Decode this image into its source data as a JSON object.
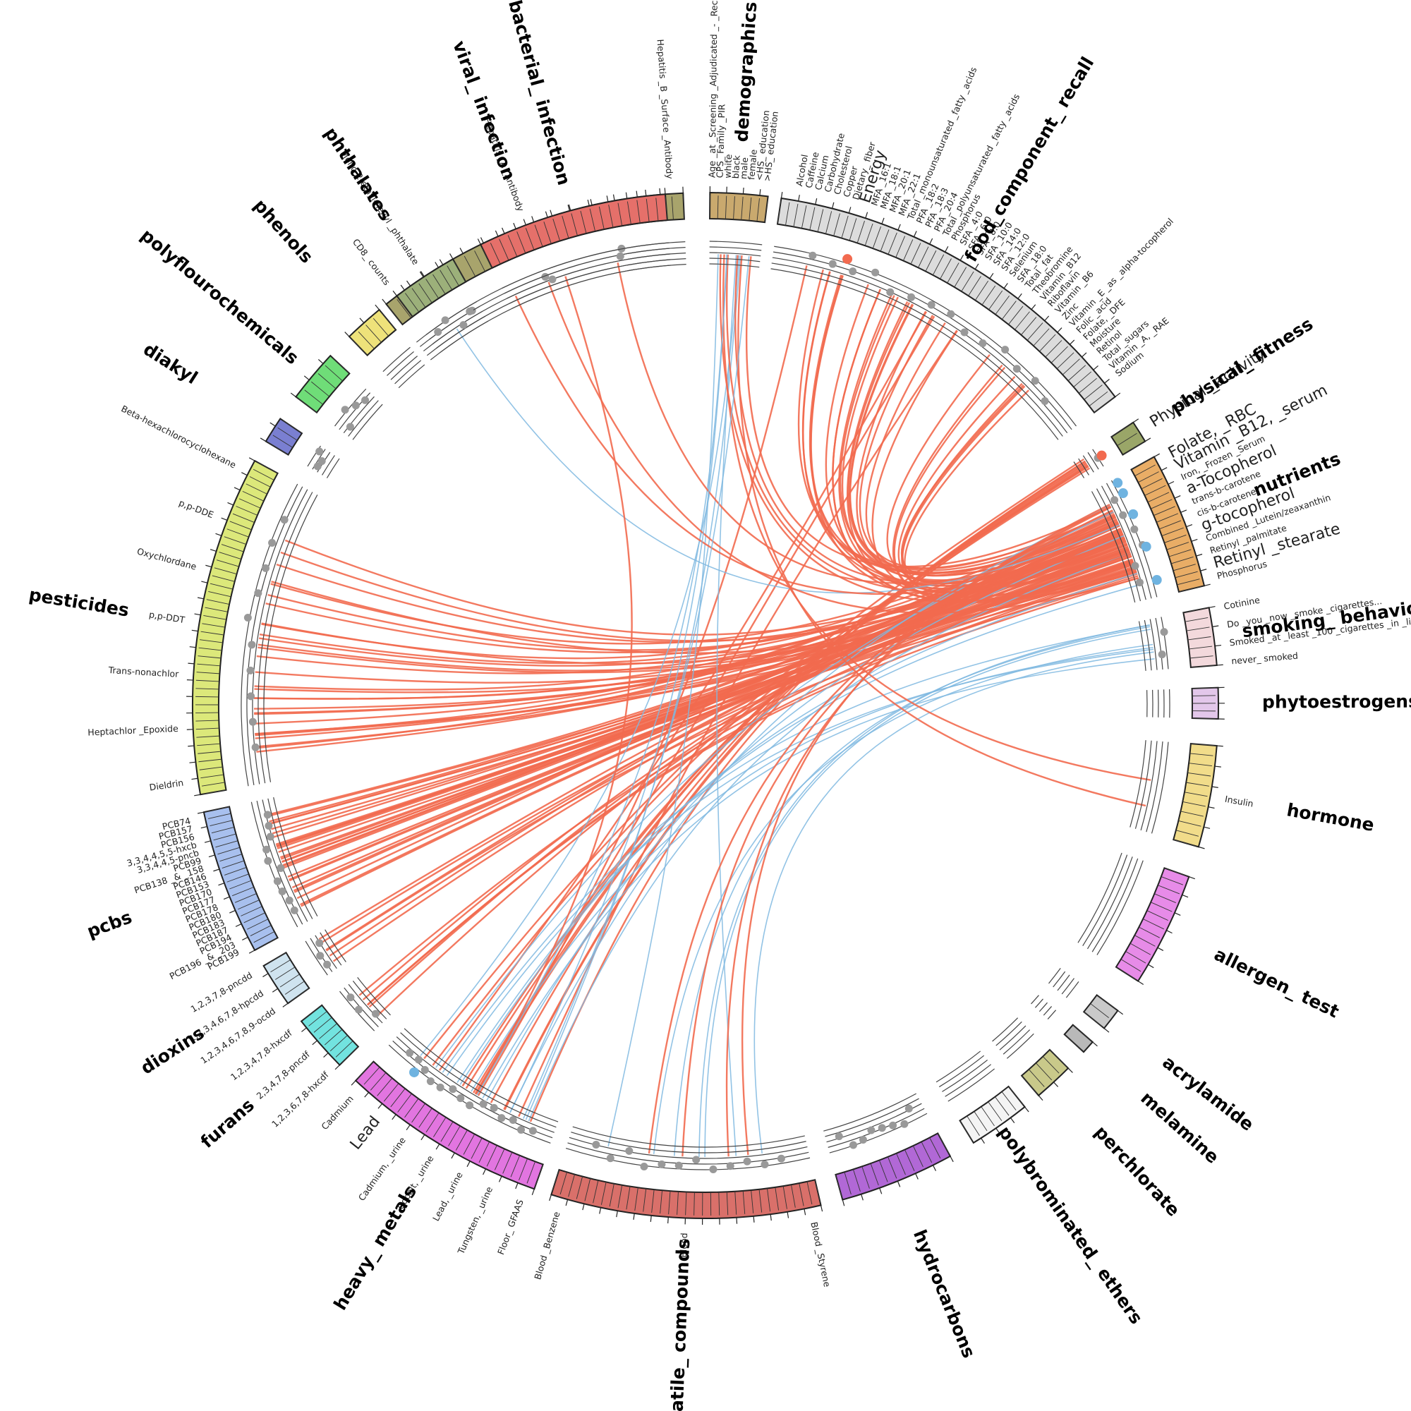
{
  "categories": [
    {
      "name": "viral_ infection",
      "color": "#a8a46c",
      "start": -38.5,
      "end": -2.5,
      "ticks": 28,
      "labels": [
        "CD8_ counts",
        "Hepatitis _A _Antibody",
        "Hepatitis _B _Surface _Antibody"
      ],
      "dots": 3
    },
    {
      "name": "demographics",
      "color": "#c9a96e",
      "start": 0.5,
      "end": 7.0,
      "ticks": 7,
      "labels": [
        "Age _at _Screening _Adjudicated _- _Recode",
        "CPS_ Family _PIR",
        "white",
        "black",
        "male",
        "female",
        "<HS_ education",
        ">HS_ education"
      ],
      "dots": 0
    },
    {
      "name": "food_component_ recall",
      "color": "#dcdcdc",
      "start": 8.5,
      "end": 53.0,
      "ticks": 46,
      "labels": [
        "Alcohol",
        "Caffeine",
        "Calcium",
        "Carbohydrate",
        "Cholesterol",
        "Copper",
        "Dietary_ fiber",
        "Energy",
        "MFA _16:1",
        "MFA _18:1",
        "MFA _20:1",
        "MFA _22:1",
        "Total _monounsaturated _fatty _acids",
        "PFA _18:2",
        "PFA _18:3",
        "PFA _20:4",
        "Total _polyunsaturated _fatty _acids",
        "Phosphorus",
        "SFA _4:0",
        "SFA _6:0",
        "SFA _8:0",
        "SFA _10:0",
        "SFA _14:0",
        "SFA _12:0",
        "Selenium",
        "SFA _18:0",
        "Total _fat",
        "Theobromine",
        "Vitamin _B12",
        "Riboflavin",
        "Vitamin _B6",
        "Zinc",
        "Vitamin _E _as _alpha-tocopherol",
        "Folic _acid",
        "Folate, _DFE",
        "Moisture",
        "Retinol",
        "Total _sugars",
        "Vitamin _A, _RAE",
        "Sodium"
      ],
      "dots": 14
    },
    {
      "name": "physical_ fitness",
      "color": "#9aa668",
      "start": 56.5,
      "end": 59.0,
      "ticks": 2,
      "labels": [
        "Physical _activity"
      ],
      "dots": 1
    },
    {
      "name": "nutrients",
      "color": "#e9ad66",
      "start": 61.0,
      "end": 76.5,
      "ticks": 18,
      "labels": [
        "Folate, _RBC",
        "Vitamin _B12, _serum",
        "Iron, _Frozen _Serum",
        "a-Tocopherol",
        "trans-b-carotene",
        "cis-b-carotene",
        "g-tocopherol",
        "Combined _Lutein/zeaxanthin",
        "Retinyl _palmitate",
        "Retinyl _stearate",
        "Phosphorus"
      ],
      "dots": 6
    },
    {
      "name": "smoking_ behavior",
      "color": "#f3d9dc",
      "start": 79.0,
      "end": 85.5,
      "ticks": 6,
      "labels": [
        "Cotinine",
        "Do _you _now _smoke _cigarettes...",
        "Smoked _at _least _100 _cigarettes _in _life",
        "never_ smoked"
      ],
      "dots": 2
    },
    {
      "name": "phytoestrogens",
      "color": "#e3c7ea",
      "start": 88.0,
      "end": 91.5,
      "ticks": 4,
      "labels": [],
      "dots": 0
    },
    {
      "name": "hormone",
      "color": "#f1dc8a",
      "start": 94.5,
      "end": 106.0,
      "ticks": 10,
      "labels": [
        "Insulin"
      ],
      "dots": 0
    },
    {
      "name": "allergen_ test",
      "color": "#e78be8",
      "start": 109.5,
      "end": 122.5,
      "ticks": 12,
      "labels": [],
      "dots": 0
    },
    {
      "name": "acrylamide",
      "color": "#c9c9c9",
      "start": 126.5,
      "end": 129.0,
      "ticks": 2,
      "labels": [],
      "dots": 0
    },
    {
      "name": "melamine",
      "color": "#b9b9b9",
      "start": 131.0,
      "end": 132.5,
      "ticks": 1,
      "labels": [],
      "dots": 0
    },
    {
      "name": "perchlorate",
      "color": "#c9c98a",
      "start": 135.0,
      "end": 139.5,
      "ticks": 4,
      "labels": [],
      "dots": 0
    },
    {
      "name": "polybrominated_ ethers",
      "color": "#f4f4f4",
      "start": 141.5,
      "end": 148.5,
      "ticks": 7,
      "labels": [],
      "dots": 0
    },
    {
      "name": "hydrocarbons",
      "color": "#b168d6",
      "start": 151.5,
      "end": 164.5,
      "ticks": 12,
      "labels": [],
      "dots": 8
    },
    {
      "name": "volatile_ compounds",
      "color": "#d9706a",
      "start": 167.0,
      "end": 197.5,
      "ticks": 32,
      "labels": [
        "Blood _Styrene",
        "Blood",
        "Blood _Benzene"
      ],
      "dots": 12
    },
    {
      "name": "heavy_ metals",
      "color": "#e275e0",
      "start": 199.5,
      "end": 223.0,
      "ticks": 24,
      "labels": [
        "Floor_ GFAAS",
        "Tungsten, _urine",
        "Lead, _urine",
        "Cobalt, _urine",
        "Cadmium, _urine",
        "Lead",
        "Cadmium"
      ],
      "dots": 14
    },
    {
      "name": "furans",
      "color": "#72e3df",
      "start": 225.5,
      "end": 232.0,
      "ticks": 7,
      "labels": [
        "1,2,3,6,7,8-hxcdf",
        "2,3,4,7,8-pncdf",
        "1,2,3,4,7,8-hxcdf"
      ],
      "dots": 3
    },
    {
      "name": "dioxins",
      "color": "#cfe3ef",
      "start": 234.5,
      "end": 239.5,
      "ticks": 5,
      "labels": [
        "1,2,3,4,6,7,8,9-ocdd",
        "1,2,3,4,6,7,8-hpcdd",
        "1,2,3,7,8-pncdd"
      ],
      "dots": 3
    },
    {
      "name": "pcbs",
      "color": "#a8c0ee",
      "start": 241.5,
      "end": 258.0,
      "ticks": 20,
      "labels": [
        "PCB199",
        "PCB196 _& _203",
        "PCB194",
        "PCB187",
        "PCB183",
        "PCB180",
        "PCB178",
        "PCB177",
        "PCB170",
        "PCB153",
        "PCB146",
        "PCB138 _& _158",
        "PCB99",
        "3,3,4,4,5-pncb",
        "3,3,4,4,5,5-hxcb",
        "PCB156",
        "PCB157",
        "PCB74"
      ],
      "dots": 10
    },
    {
      "name": "pesticides",
      "color": "#dce87a",
      "start": 260.0,
      "end": 298.5,
      "ticks": 42,
      "labels": [
        "Dieldrin",
        "Heptachlor _Epoxide",
        "Trans-nonachlor",
        "p,p-DDT",
        "Oxychlordane",
        "p,p-DDE",
        "Beta-hexachlorocyclohexane"
      ],
      "dots": 10
    },
    {
      "name": "diakyl",
      "color": "#7a7fd1",
      "start": 301.0,
      "end": 304.0,
      "ticks": 3,
      "labels": [],
      "dots": 3
    },
    {
      "name": "polyflourochemicals",
      "color": "#6fdd78",
      "start": 307.0,
      "end": 313.0,
      "ticks": 5,
      "labels": [],
      "dots": 4
    },
    {
      "name": "phenols",
      "color": "#eee27a",
      "start": 316.0,
      "end": 320.5,
      "ticks": 4,
      "labels": [],
      "dots": 0
    },
    {
      "name": "phthalates",
      "color": "#9cb07a",
      "start": 323.0,
      "end": 330.5,
      "ticks": 8,
      "labels": [
        "Mono-2-ethyl-hexyl _phthalate"
      ],
      "dots": 4
    },
    {
      "name": "bacterial_ infection",
      "color": "#e5706a",
      "start": 334.0,
      "end": 355.5,
      "ticks": 20,
      "labels": [],
      "dots": 2
    }
  ],
  "highlights": [
    {
      "text": "Energy",
      "category": "food_component_ recall",
      "color": "#f26a4f"
    },
    {
      "text": "Physical _activity",
      "category": "physical_ fitness",
      "color": "#f26a4f"
    },
    {
      "text": "Folate, _RBC",
      "category": "nutrients",
      "color": "#6fb3e0"
    },
    {
      "text": "Vitamin _B12, _serum",
      "category": "nutrients",
      "color": "#6fb3e0"
    },
    {
      "text": "a-Tocopherol",
      "category": "nutrients",
      "color": "#6fb3e0"
    },
    {
      "text": "g-tocopherol",
      "category": "nutrients",
      "color": "#6fb3e0"
    },
    {
      "text": "Retinyl _stearate",
      "category": "nutrients",
      "color": "#6fb3e0"
    },
    {
      "text": "Lead",
      "category": "heavy_ metals",
      "color": "#6fb3e0"
    }
  ],
  "link_colors": {
    "positive": "#f26a4f",
    "negative": "#7fb9e0"
  },
  "link_groups": [
    {
      "from": "nutrients",
      "to": "pesticides",
      "count": 30,
      "color": "positive"
    },
    {
      "from": "nutrients",
      "to": "pcbs",
      "count": 30,
      "color": "positive"
    },
    {
      "from": "nutrients",
      "to": "food_component_ recall",
      "count": 28,
      "color": "positive"
    },
    {
      "from": "nutrients",
      "to": "dioxins",
      "count": 6,
      "color": "positive"
    },
    {
      "from": "nutrients",
      "to": "furans",
      "count": 6,
      "color": "positive"
    },
    {
      "from": "physical_ fitness",
      "to": "heavy_ metals",
      "count": 10,
      "color": "positive"
    },
    {
      "from": "heavy_ metals",
      "to": "food_component_ recall",
      "count": 4,
      "color": "positive"
    },
    {
      "from": "heavy_ metals",
      "to": "nutrients",
      "count": 6,
      "color": "negative"
    },
    {
      "from": "heavy_ metals",
      "to": "smoking_ behavior",
      "count": 4,
      "color": "negative"
    },
    {
      "from": "heavy_ metals",
      "to": "demographics",
      "count": 3,
      "color": "negative"
    },
    {
      "from": "volatile_ compounds",
      "to": "smoking_ behavior",
      "count": 5,
      "color": "negative"
    },
    {
      "from": "volatile_ compounds",
      "to": "demographics",
      "count": 2,
      "color": "negative"
    },
    {
      "from": "volatile_ compounds",
      "to": "nutrients",
      "count": 4,
      "color": "positive"
    },
    {
      "from": "phthalates",
      "to": "nutrients",
      "count": 1,
      "color": "negative"
    },
    {
      "from": "viral_ infection",
      "to": "nutrients",
      "count": 3,
      "color": "positive"
    },
    {
      "from": "viral_ infection",
      "to": "heavy_ metals",
      "count": 1,
      "color": "positive"
    },
    {
      "from": "demographics",
      "to": "nutrients",
      "count": 4,
      "color": "positive"
    },
    {
      "from": "demographics",
      "to": "hormone",
      "count": 2,
      "color": "positive"
    },
    {
      "from": "demographics",
      "to": "heavy_ metals",
      "count": 2,
      "color": "negative"
    }
  ]
}
